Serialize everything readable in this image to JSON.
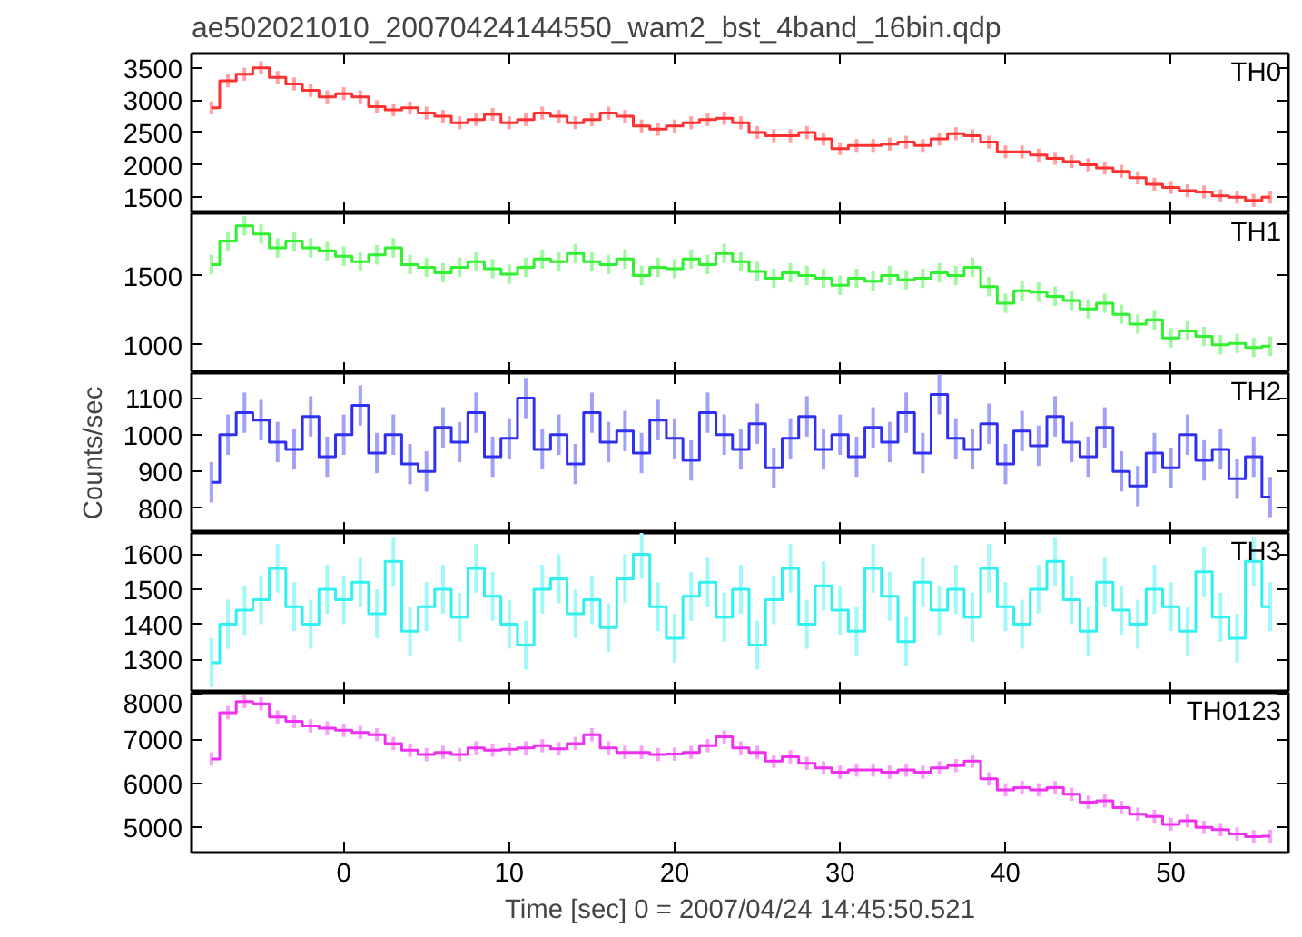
{
  "chart_data": [
    {
      "type": "step",
      "title": "ae502021010_20070424144550_wam2_bst_4band_16bin.qdp",
      "x": [
        -8,
        -7,
        -6,
        -5,
        -4,
        -3,
        -2,
        -1,
        0,
        1,
        2,
        3,
        4,
        5,
        6,
        7,
        8,
        9,
        10,
        11,
        12,
        13,
        14,
        15,
        16,
        17,
        18,
        19,
        20,
        21,
        22,
        23,
        24,
        25,
        26,
        27,
        28,
        29,
        30,
        31,
        32,
        33,
        34,
        35,
        36,
        37,
        38,
        39,
        40,
        41,
        42,
        43,
        44,
        45,
        46,
        47,
        48,
        49,
        50,
        51,
        52,
        53,
        54,
        55,
        56
      ],
      "xlim": [
        -9.2,
        57.1
      ],
      "xticks": [
        0,
        10,
        20,
        30,
        40,
        50
      ],
      "ylim": [
        1250,
        3720
      ],
      "yticks": [
        1500,
        2000,
        2500,
        3000,
        3500
      ],
      "tick_labels": "y",
      "grid": false,
      "legend": false,
      "series": [
        {
          "name": "TH0",
          "color": "#ff3030",
          "values": [
            2880,
            3300,
            3400,
            3500,
            3350,
            3250,
            3150,
            3050,
            3100,
            3050,
            2900,
            2850,
            2880,
            2800,
            2750,
            2650,
            2700,
            2780,
            2650,
            2700,
            2800,
            2750,
            2650,
            2700,
            2800,
            2750,
            2600,
            2550,
            2600,
            2650,
            2700,
            2720,
            2650,
            2500,
            2450,
            2450,
            2500,
            2400,
            2250,
            2300,
            2300,
            2320,
            2350,
            2300,
            2400,
            2480,
            2450,
            2350,
            2200,
            2200,
            2150,
            2100,
            2050,
            2000,
            1950,
            1900,
            1800,
            1700,
            1650,
            1600,
            1580,
            1520,
            1500,
            1450,
            1500
          ],
          "errors": [
            100,
            100,
            100,
            100,
            100,
            100,
            100,
            100,
            100,
            100,
            100,
            100,
            100,
            100,
            100,
            100,
            100,
            100,
            100,
            100,
            100,
            100,
            100,
            100,
            100,
            100,
            100,
            100,
            100,
            100,
            100,
            100,
            100,
            100,
            100,
            100,
            100,
            100,
            100,
            100,
            100,
            100,
            100,
            100,
            100,
            100,
            100,
            100,
            100,
            100,
            100,
            100,
            100,
            100,
            100,
            100,
            100,
            100,
            100,
            100,
            100,
            100,
            100,
            100,
            100
          ]
        }
      ]
    },
    {
      "type": "step",
      "x": [
        -8,
        -7,
        -6,
        -5,
        -4,
        -3,
        -2,
        -1,
        0,
        1,
        2,
        3,
        4,
        5,
        6,
        7,
        8,
        9,
        10,
        11,
        12,
        13,
        14,
        15,
        16,
        17,
        18,
        19,
        20,
        21,
        22,
        23,
        24,
        25,
        26,
        27,
        28,
        29,
        30,
        31,
        32,
        33,
        34,
        35,
        36,
        37,
        38,
        39,
        40,
        41,
        42,
        43,
        44,
        45,
        46,
        47,
        48,
        49,
        50,
        51,
        52,
        53,
        54,
        55,
        56
      ],
      "xlim": [
        -9.2,
        57.1
      ],
      "xticks": [
        0,
        10,
        20,
        30,
        40,
        50
      ],
      "ylim": [
        795,
        1950
      ],
      "yticks": [
        1000,
        1500
      ],
      "tick_labels": "y",
      "grid": false,
      "legend": false,
      "series": [
        {
          "name": "TH1",
          "color": "#30f030",
          "values": [
            1580,
            1750,
            1860,
            1800,
            1700,
            1750,
            1700,
            1680,
            1640,
            1600,
            1650,
            1700,
            1580,
            1560,
            1520,
            1560,
            1600,
            1550,
            1510,
            1560,
            1620,
            1600,
            1660,
            1600,
            1580,
            1620,
            1500,
            1560,
            1550,
            1620,
            1580,
            1660,
            1600,
            1530,
            1480,
            1520,
            1500,
            1480,
            1430,
            1480,
            1460,
            1500,
            1470,
            1480,
            1520,
            1500,
            1560,
            1420,
            1300,
            1390,
            1380,
            1350,
            1320,
            1260,
            1300,
            1220,
            1150,
            1180,
            1050,
            1100,
            1060,
            1000,
            1010,
            980,
            990
          ],
          "errors": [
            70,
            70,
            70,
            70,
            70,
            70,
            70,
            70,
            70,
            70,
            70,
            70,
            70,
            70,
            70,
            70,
            70,
            70,
            70,
            70,
            70,
            70,
            70,
            70,
            70,
            70,
            70,
            70,
            70,
            70,
            70,
            70,
            70,
            70,
            70,
            70,
            70,
            70,
            70,
            70,
            70,
            70,
            70,
            70,
            70,
            70,
            70,
            70,
            70,
            70,
            70,
            70,
            70,
            70,
            70,
            70,
            70,
            70,
            70,
            70,
            70,
            70,
            70,
            70,
            70
          ]
        }
      ]
    },
    {
      "type": "step",
      "ylabel": "Counts/sec",
      "x": [
        -8,
        -7,
        -6,
        -5,
        -4,
        -3,
        -2,
        -1,
        0,
        1,
        2,
        3,
        4,
        5,
        6,
        7,
        8,
        9,
        10,
        11,
        12,
        13,
        14,
        15,
        16,
        17,
        18,
        19,
        20,
        21,
        22,
        23,
        24,
        25,
        26,
        27,
        28,
        29,
        30,
        31,
        32,
        33,
        34,
        35,
        36,
        37,
        38,
        39,
        40,
        41,
        42,
        43,
        44,
        45,
        46,
        47,
        48,
        49,
        50,
        51,
        52,
        53,
        54,
        55,
        56
      ],
      "xlim": [
        -9.2,
        57.1
      ],
      "xticks": [
        0,
        10,
        20,
        30,
        40,
        50
      ],
      "ylim": [
        732,
        1168
      ],
      "yticks": [
        800,
        900,
        1000,
        1100
      ],
      "tick_labels": "y",
      "grid": false,
      "legend": false,
      "series": [
        {
          "name": "TH2",
          "color": "#3030f0",
          "values": [
            870,
            1000,
            1060,
            1040,
            980,
            960,
            1050,
            940,
            1000,
            1080,
            950,
            1000,
            920,
            900,
            1020,
            980,
            1060,
            940,
            990,
            1100,
            960,
            1000,
            920,
            1060,
            980,
            1010,
            950,
            1040,
            990,
            930,
            1060,
            1000,
            960,
            1030,
            910,
            990,
            1050,
            960,
            1000,
            940,
            1020,
            980,
            1060,
            950,
            1110,
            990,
            960,
            1030,
            920,
            1010,
            970,
            1050,
            980,
            940,
            1020,
            900,
            860,
            950,
            910,
            1000,
            930,
            960,
            880,
            940,
            830
          ],
          "errors": [
            55,
            55,
            55,
            55,
            55,
            55,
            55,
            55,
            55,
            55,
            55,
            55,
            55,
            55,
            55,
            55,
            55,
            55,
            55,
            55,
            55,
            55,
            55,
            55,
            55,
            55,
            55,
            55,
            55,
            55,
            55,
            55,
            55,
            55,
            55,
            55,
            55,
            55,
            55,
            55,
            55,
            55,
            55,
            55,
            55,
            55,
            55,
            55,
            55,
            55,
            55,
            55,
            55,
            55,
            55,
            55,
            55,
            55,
            55,
            55,
            55,
            55,
            55,
            55,
            55
          ]
        }
      ]
    },
    {
      "type": "step",
      "x": [
        -8,
        -7,
        -6,
        -5,
        -4,
        -3,
        -2,
        -1,
        0,
        1,
        2,
        3,
        4,
        5,
        6,
        7,
        8,
        9,
        10,
        11,
        12,
        13,
        14,
        15,
        16,
        17,
        18,
        19,
        20,
        21,
        22,
        23,
        24,
        25,
        26,
        27,
        28,
        29,
        30,
        31,
        32,
        33,
        34,
        35,
        36,
        37,
        38,
        39,
        40,
        41,
        42,
        43,
        44,
        45,
        46,
        47,
        48,
        49,
        50,
        51,
        52,
        53,
        54,
        55,
        56
      ],
      "xlim": [
        -9.2,
        57.1
      ],
      "xticks": [
        0,
        10,
        20,
        30,
        40,
        50
      ],
      "ylim": [
        1204,
        1661
      ],
      "yticks": [
        1300,
        1400,
        1500,
        1600
      ],
      "tick_labels": "y",
      "grid": false,
      "legend": false,
      "series": [
        {
          "name": "TH3",
          "color": "#30f0f0",
          "values": [
            1290,
            1400,
            1440,
            1470,
            1560,
            1450,
            1400,
            1500,
            1470,
            1520,
            1430,
            1580,
            1380,
            1450,
            1500,
            1420,
            1560,
            1480,
            1400,
            1340,
            1500,
            1530,
            1430,
            1470,
            1390,
            1530,
            1600,
            1450,
            1360,
            1480,
            1520,
            1420,
            1500,
            1340,
            1470,
            1560,
            1400,
            1510,
            1440,
            1380,
            1560,
            1480,
            1350,
            1520,
            1440,
            1500,
            1420,
            1560,
            1450,
            1400,
            1500,
            1580,
            1470,
            1380,
            1520,
            1440,
            1400,
            1500,
            1450,
            1380,
            1550,
            1420,
            1360,
            1580,
            1450
          ],
          "errors": [
            70,
            70,
            70,
            70,
            70,
            70,
            70,
            70,
            70,
            70,
            70,
            70,
            70,
            70,
            70,
            70,
            70,
            70,
            70,
            70,
            70,
            70,
            70,
            70,
            70,
            70,
            70,
            70,
            70,
            70,
            70,
            70,
            70,
            70,
            70,
            70,
            70,
            70,
            70,
            70,
            70,
            70,
            70,
            70,
            70,
            70,
            70,
            70,
            70,
            70,
            70,
            70,
            70,
            70,
            70,
            70,
            70,
            70,
            70,
            70,
            70,
            70,
            70,
            70,
            70
          ]
        }
      ]
    },
    {
      "type": "step",
      "xlabel": "Time [sec] 0 = 2007/04/24 14:45:50.521",
      "x": [
        -8,
        -7,
        -6,
        -5,
        -4,
        -3,
        -2,
        -1,
        0,
        1,
        2,
        3,
        4,
        5,
        6,
        7,
        8,
        9,
        10,
        11,
        12,
        13,
        14,
        15,
        16,
        17,
        18,
        19,
        20,
        21,
        22,
        23,
        24,
        25,
        26,
        27,
        28,
        29,
        30,
        31,
        32,
        33,
        34,
        35,
        36,
        37,
        38,
        39,
        40,
        41,
        42,
        43,
        44,
        45,
        46,
        47,
        48,
        49,
        50,
        51,
        52,
        53,
        54,
        55,
        56
      ],
      "xlim": [
        -9.2,
        57.1
      ],
      "xticks": [
        0,
        10,
        20,
        30,
        40,
        50
      ],
      "ylim": [
        4430,
        8050
      ],
      "yticks": [
        5000,
        6000,
        7000,
        8000
      ],
      "grid": false,
      "legend": false,
      "series": [
        {
          "name": "TH0123",
          "color": "#f030f0",
          "values": [
            6550,
            7600,
            7850,
            7800,
            7500,
            7400,
            7300,
            7250,
            7200,
            7150,
            7100,
            6900,
            6750,
            6650,
            6700,
            6650,
            6800,
            6750,
            6770,
            6800,
            6850,
            6780,
            6900,
            7100,
            6800,
            6700,
            6700,
            6650,
            6660,
            6700,
            6850,
            7050,
            6800,
            6700,
            6500,
            6600,
            6450,
            6350,
            6250,
            6300,
            6300,
            6250,
            6300,
            6250,
            6350,
            6400,
            6500,
            6100,
            5850,
            5900,
            5850,
            5900,
            5750,
            5570,
            5600,
            5450,
            5300,
            5250,
            5070,
            5150,
            5000,
            4950,
            4850,
            4790,
            4800
          ],
          "errors": [
            150,
            150,
            150,
            150,
            150,
            150,
            150,
            150,
            150,
            150,
            150,
            150,
            150,
            150,
            150,
            150,
            150,
            150,
            150,
            150,
            150,
            150,
            150,
            150,
            150,
            150,
            150,
            150,
            150,
            150,
            150,
            150,
            150,
            150,
            150,
            150,
            150,
            150,
            150,
            150,
            150,
            150,
            150,
            150,
            150,
            150,
            150,
            150,
            150,
            150,
            150,
            150,
            150,
            150,
            150,
            150,
            150,
            150,
            150,
            150,
            150,
            150,
            150,
            150,
            150
          ]
        }
      ]
    }
  ]
}
